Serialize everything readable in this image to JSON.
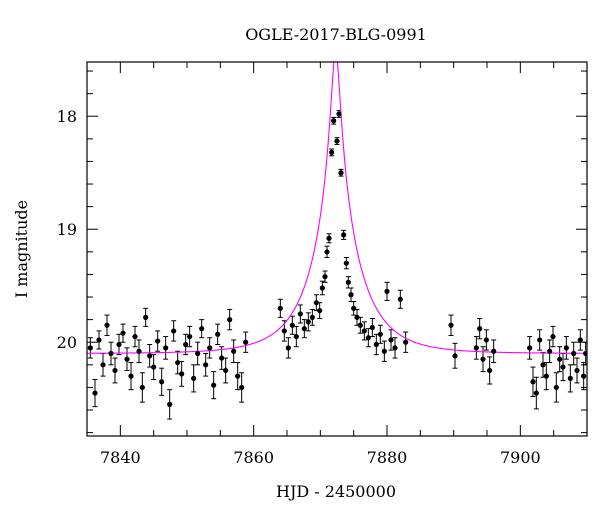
{
  "chart_data": {
    "type": "scatter",
    "title": "OGLE-2017-BLG-0991",
    "xlabel": "HJD - 2450000",
    "ylabel": "I magnitude",
    "xlim": [
      7835,
      7910
    ],
    "ylim": [
      20.83,
      17.52
    ],
    "y_inverted": true,
    "grid": false,
    "x_ticks": [
      7840,
      7860,
      7880,
      7900
    ],
    "y_ticks": [
      18,
      19,
      20
    ],
    "colors": {
      "points": "#000000",
      "model": "#ff00ff",
      "frame": "#000000"
    },
    "model_params": {
      "baseline": 20.1,
      "t0": 7872.3,
      "u0": 0.085,
      "tE": 7.0
    },
    "series": [
      {
        "type": "scatter-errorbars",
        "points": [
          [
            7835.5,
            20.05,
            0.09
          ],
          [
            7836.2,
            20.45,
            0.12
          ],
          [
            7836.8,
            19.98,
            0.08
          ],
          [
            7837.4,
            20.2,
            0.1
          ],
          [
            7838.0,
            19.85,
            0.09
          ],
          [
            7838.6,
            20.1,
            0.1
          ],
          [
            7839.2,
            20.25,
            0.11
          ],
          [
            7839.8,
            20.02,
            0.09
          ],
          [
            7840.4,
            19.92,
            0.08
          ],
          [
            7841.0,
            20.15,
            0.1
          ],
          [
            7841.6,
            20.3,
            0.12
          ],
          [
            7842.2,
            19.95,
            0.09
          ],
          [
            7842.8,
            20.08,
            0.1
          ],
          [
            7843.3,
            20.4,
            0.13
          ],
          [
            7843.8,
            19.78,
            0.08
          ],
          [
            7844.4,
            20.12,
            0.1
          ],
          [
            7845.0,
            20.22,
            0.11
          ],
          [
            7845.6,
            19.99,
            0.09
          ],
          [
            7846.2,
            20.35,
            0.12
          ],
          [
            7846.8,
            20.05,
            0.1
          ],
          [
            7847.4,
            20.55,
            0.13
          ],
          [
            7848.0,
            19.9,
            0.09
          ],
          [
            7848.6,
            20.18,
            0.1
          ],
          [
            7849.2,
            20.28,
            0.11
          ],
          [
            7849.8,
            20.02,
            0.09
          ],
          [
            7850.4,
            19.95,
            0.09
          ],
          [
            7851.0,
            20.32,
            0.12
          ],
          [
            7851.6,
            20.1,
            0.1
          ],
          [
            7852.2,
            19.88,
            0.08
          ],
          [
            7852.8,
            20.2,
            0.1
          ],
          [
            7853.4,
            20.05,
            0.09
          ],
          [
            7854.0,
            20.38,
            0.12
          ],
          [
            7854.6,
            19.93,
            0.09
          ],
          [
            7855.2,
            20.14,
            0.1
          ],
          [
            7855.8,
            20.25,
            0.11
          ],
          [
            7856.4,
            19.8,
            0.09
          ],
          [
            7857.0,
            20.08,
            0.1
          ],
          [
            7857.6,
            20.3,
            0.12
          ],
          [
            7858.2,
            20.4,
            0.13
          ],
          [
            7858.8,
            20.0,
            0.09
          ],
          [
            7864.0,
            19.7,
            0.08
          ],
          [
            7864.6,
            19.9,
            0.09
          ],
          [
            7865.2,
            20.05,
            0.09
          ],
          [
            7865.8,
            19.85,
            0.08
          ],
          [
            7866.4,
            19.95,
            0.09
          ],
          [
            7867.0,
            19.75,
            0.08
          ],
          [
            7867.6,
            19.88,
            0.08
          ],
          [
            7868.2,
            19.82,
            0.08
          ],
          [
            7868.8,
            19.78,
            0.07
          ],
          [
            7869.4,
            19.65,
            0.07
          ],
          [
            7869.9,
            19.72,
            0.07
          ],
          [
            7870.3,
            19.52,
            0.06
          ],
          [
            7870.7,
            19.42,
            0.05
          ],
          [
            7871.0,
            19.2,
            0.05
          ],
          [
            7871.3,
            19.08,
            0.04
          ],
          [
            7871.7,
            18.32,
            0.03
          ],
          [
            7872.0,
            18.04,
            0.03
          ],
          [
            7872.5,
            18.22,
            0.03
          ],
          [
            7872.8,
            17.98,
            0.03
          ],
          [
            7873.1,
            18.5,
            0.03
          ],
          [
            7873.5,
            19.05,
            0.04
          ],
          [
            7873.9,
            19.3,
            0.05
          ],
          [
            7874.2,
            19.47,
            0.05
          ],
          [
            7874.6,
            19.58,
            0.06
          ],
          [
            7875.0,
            19.7,
            0.06
          ],
          [
            7875.5,
            19.78,
            0.07
          ],
          [
            7876.0,
            19.85,
            0.07
          ],
          [
            7876.6,
            19.9,
            0.08
          ],
          [
            7877.2,
            19.96,
            0.08
          ],
          [
            7877.8,
            19.87,
            0.08
          ],
          [
            7878.4,
            20.02,
            0.09
          ],
          [
            7879.0,
            19.93,
            0.08
          ],
          [
            7879.6,
            20.08,
            0.09
          ],
          [
            7880.0,
            19.55,
            0.08
          ],
          [
            7880.6,
            19.98,
            0.09
          ],
          [
            7881.2,
            20.05,
            0.09
          ],
          [
            7882.0,
            19.62,
            0.08
          ],
          [
            7882.8,
            20.0,
            0.09
          ],
          [
            7889.6,
            19.85,
            0.09
          ],
          [
            7890.2,
            20.12,
            0.11
          ],
          [
            7893.4,
            20.05,
            0.1
          ],
          [
            7893.9,
            19.88,
            0.09
          ],
          [
            7894.4,
            20.15,
            0.11
          ],
          [
            7894.9,
            19.98,
            0.09
          ],
          [
            7895.4,
            20.25,
            0.12
          ],
          [
            7896.0,
            20.08,
            0.1
          ],
          [
            7901.4,
            20.05,
            0.1
          ],
          [
            7901.9,
            20.35,
            0.13
          ],
          [
            7902.4,
            20.45,
            0.14
          ],
          [
            7902.9,
            19.98,
            0.09
          ],
          [
            7903.4,
            20.2,
            0.11
          ],
          [
            7903.9,
            20.3,
            0.12
          ],
          [
            7904.4,
            20.08,
            0.1
          ],
          [
            7904.9,
            19.95,
            0.09
          ],
          [
            7905.4,
            20.4,
            0.13
          ],
          [
            7905.9,
            20.15,
            0.11
          ],
          [
            7906.4,
            20.22,
            0.12
          ],
          [
            7906.9,
            20.05,
            0.1
          ],
          [
            7907.5,
            20.32,
            0.12
          ],
          [
            7908.0,
            20.1,
            0.1
          ],
          [
            7908.5,
            20.25,
            0.11
          ],
          [
            7909.0,
            19.98,
            0.09
          ],
          [
            7909.5,
            20.3,
            0.12
          ],
          [
            7909.8,
            20.1,
            0.1
          ]
        ]
      },
      {
        "type": "line"
      }
    ]
  }
}
